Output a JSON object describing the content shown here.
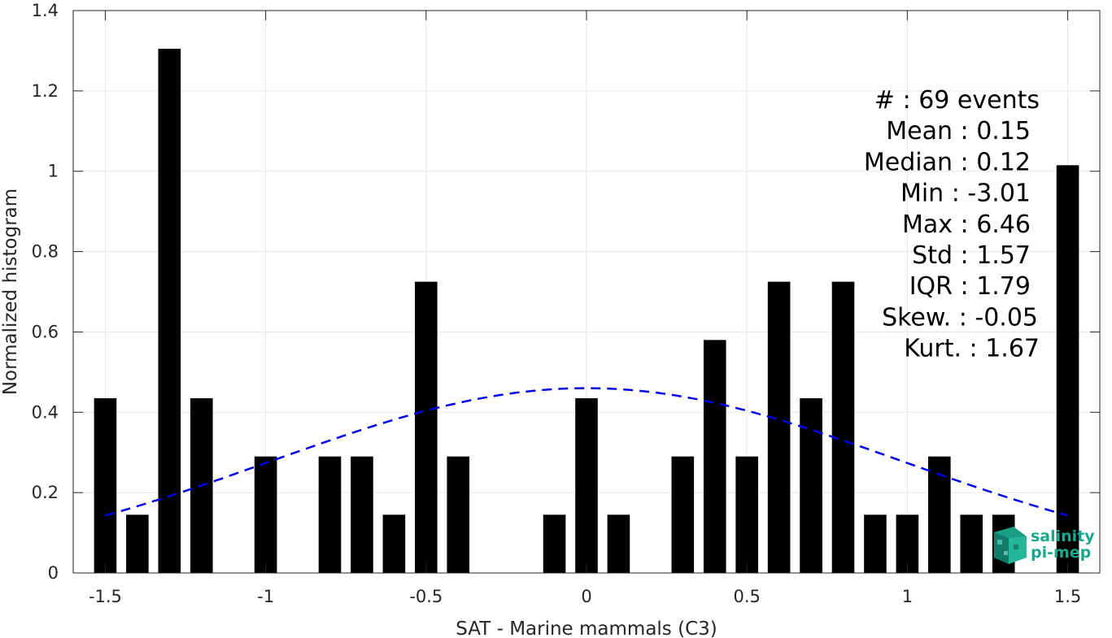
{
  "chart_data": {
    "type": "bar",
    "title": "",
    "xlabel": "SAT - Marine mammals (C3)",
    "ylabel": "Normalized histogram",
    "xlim": [
      -1.6,
      1.6
    ],
    "ylim": [
      0,
      1.4
    ],
    "grid": true,
    "x_ticks": [
      -1.5,
      -1,
      -0.5,
      0,
      0.5,
      1,
      1.5
    ],
    "x_tick_labels": [
      "-1.5",
      "-1",
      "-0.5",
      "0",
      "0.5",
      "1",
      "1.5"
    ],
    "y_ticks": [
      0,
      0.2,
      0.4,
      0.6,
      0.8,
      1,
      1.2,
      1.4
    ],
    "y_tick_labels": [
      "0",
      "0.2",
      "0.4",
      "0.6",
      "0.8",
      "1",
      "1.2",
      "1.4"
    ],
    "bar_width": 0.07,
    "bar_color": "#000000",
    "bars": [
      {
        "x": -1.5,
        "value": 0.435
      },
      {
        "x": -1.4,
        "value": 0.145
      },
      {
        "x": -1.3,
        "value": 1.305
      },
      {
        "x": -1.2,
        "value": 0.435
      },
      {
        "x": -1.0,
        "value": 0.29
      },
      {
        "x": -0.8,
        "value": 0.29
      },
      {
        "x": -0.7,
        "value": 0.29
      },
      {
        "x": -0.6,
        "value": 0.145
      },
      {
        "x": -0.5,
        "value": 0.725
      },
      {
        "x": -0.4,
        "value": 0.29
      },
      {
        "x": -0.1,
        "value": 0.145
      },
      {
        "x": 0.0,
        "value": 0.435
      },
      {
        "x": 0.1,
        "value": 0.145
      },
      {
        "x": 0.3,
        "value": 0.29
      },
      {
        "x": 0.4,
        "value": 0.58
      },
      {
        "x": 0.5,
        "value": 0.29
      },
      {
        "x": 0.6,
        "value": 0.725
      },
      {
        "x": 0.7,
        "value": 0.435
      },
      {
        "x": 0.8,
        "value": 0.725
      },
      {
        "x": 0.9,
        "value": 0.145
      },
      {
        "x": 1.0,
        "value": 0.145
      },
      {
        "x": 1.1,
        "value": 0.29
      },
      {
        "x": 1.2,
        "value": 0.145
      },
      {
        "x": 1.3,
        "value": 0.145
      },
      {
        "x": 1.5,
        "value": 1.015
      }
    ],
    "fit_curve": {
      "type": "gaussian",
      "style": "dashed",
      "color": "#0000e6",
      "peak_x": 0.0,
      "peak_y": 0.46,
      "x_range": [
        -1.5,
        1.5
      ],
      "points": [
        {
          "x": -1.5,
          "y": 0.143
        },
        {
          "x": -1.3,
          "y": 0.191
        },
        {
          "x": -1.1,
          "y": 0.245
        },
        {
          "x": -0.9,
          "y": 0.3
        },
        {
          "x": -0.7,
          "y": 0.354
        },
        {
          "x": -0.5,
          "y": 0.401
        },
        {
          "x": -0.3,
          "y": 0.437
        },
        {
          "x": -0.1,
          "y": 0.457
        },
        {
          "x": 0.0,
          "y": 0.46
        },
        {
          "x": 0.1,
          "y": 0.457
        },
        {
          "x": 0.3,
          "y": 0.437
        },
        {
          "x": 0.5,
          "y": 0.401
        },
        {
          "x": 0.7,
          "y": 0.354
        },
        {
          "x": 0.9,
          "y": 0.3
        },
        {
          "x": 1.1,
          "y": 0.245
        },
        {
          "x": 1.3,
          "y": 0.191
        },
        {
          "x": 1.5,
          "y": 0.143
        }
      ]
    },
    "stats_box": [
      "#  : 69 events",
      "Mean : 0.15",
      "Median : 0.12",
      "Min : -3.01",
      "Max : 6.46",
      "Std : 1.57",
      "IQR : 1.79",
      "Skew. : -0.05",
      "Kurt. : 1.67"
    ]
  },
  "logo": {
    "line1": "salinity",
    "line2": "pi-mep",
    "color": "#1aa88f",
    "icon": "pi-mep-cube-icon"
  }
}
